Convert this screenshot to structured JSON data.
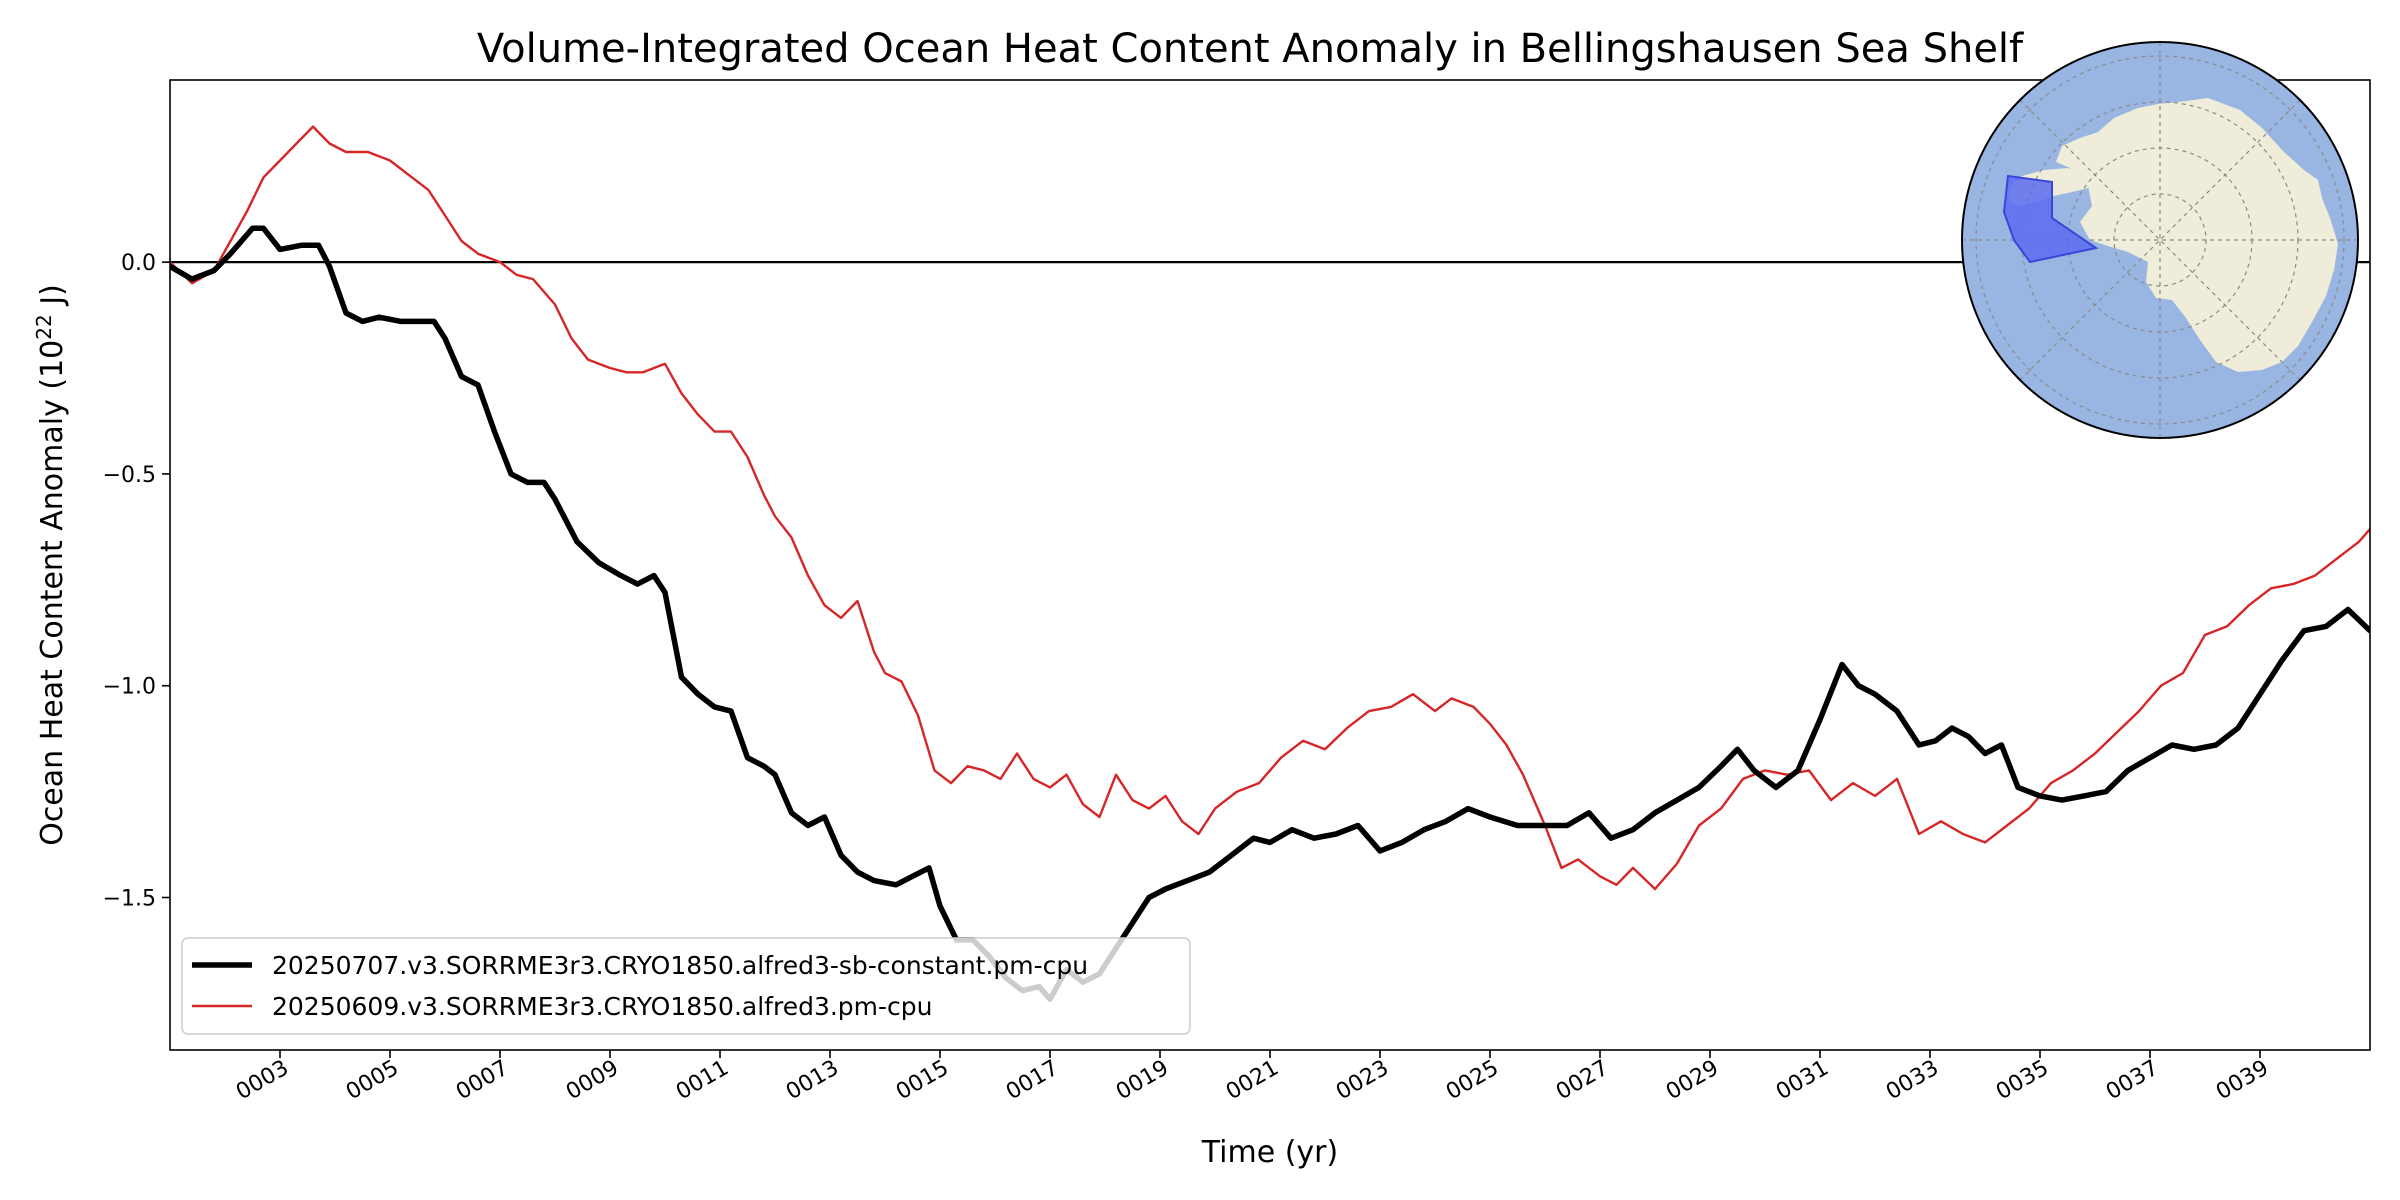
{
  "chart_data": {
    "type": "line",
    "title": "Volume-Integrated Ocean Heat Content Anomaly in Bellingshausen Sea Shelf",
    "xlabel": "Time (yr)",
    "ylabel": "Ocean Heat Content Anomaly (10²² J)",
    "ylabel_parts": {
      "pre": "Ocean Heat Content Anomaly (10",
      "sup": "22",
      "post": " J)"
    },
    "xlim": [
      1.0,
      41.0
    ],
    "ylim": [
      -1.86,
      0.43
    ],
    "x_ticks": [
      {
        "value": 3,
        "label": "0003"
      },
      {
        "value": 5,
        "label": "0005"
      },
      {
        "value": 7,
        "label": "0007"
      },
      {
        "value": 9,
        "label": "0009"
      },
      {
        "value": 11,
        "label": "0011"
      },
      {
        "value": 13,
        "label": "0013"
      },
      {
        "value": 15,
        "label": "0015"
      },
      {
        "value": 17,
        "label": "0017"
      },
      {
        "value": 19,
        "label": "0019"
      },
      {
        "value": 21,
        "label": "0021"
      },
      {
        "value": 23,
        "label": "0023"
      },
      {
        "value": 25,
        "label": "0025"
      },
      {
        "value": 27,
        "label": "0027"
      },
      {
        "value": 29,
        "label": "0029"
      },
      {
        "value": 31,
        "label": "0031"
      },
      {
        "value": 33,
        "label": "0033"
      },
      {
        "value": 35,
        "label": "0035"
      },
      {
        "value": 37,
        "label": "0037"
      },
      {
        "value": 39,
        "label": "0039"
      }
    ],
    "y_ticks": [
      {
        "value": 0.0,
        "label": "0.0"
      },
      {
        "value": -0.5,
        "label": "−0.5"
      },
      {
        "value": -1.0,
        "label": "−1.0"
      },
      {
        "value": -1.5,
        "label": "−1.5"
      }
    ],
    "zero_line": 0.0,
    "grid": false,
    "legend_position": "lower-left",
    "inset": "polar map of Antarctica with the Bellingshausen Sea shelf region highlighted",
    "colors": {
      "ocean": "#99b6e3",
      "land": "#efecd9",
      "region": "#5b6cf0",
      "series_black": "#000000",
      "series_red": "#d62728",
      "zero_line": "#000000"
    },
    "series": [
      {
        "name": "20250707.v3.SORRME3r3.CRYO1850.alfred3-sb-constant.pm-cpu",
        "color": "#000000",
        "x": [
          1.0,
          1.4,
          1.8,
          2.1,
          2.5,
          2.7,
          3.0,
          3.4,
          3.7,
          3.9,
          4.2,
          4.5,
          4.8,
          5.2,
          5.5,
          5.8,
          6.0,
          6.3,
          6.6,
          6.9,
          7.2,
          7.5,
          7.8,
          8.0,
          8.4,
          8.8,
          9.2,
          9.5,
          9.8,
          10.0,
          10.3,
          10.6,
          10.9,
          11.2,
          11.5,
          11.8,
          12.0,
          12.3,
          12.6,
          12.9,
          13.2,
          13.5,
          13.8,
          14.2,
          14.5,
          14.8,
          15.0,
          15.3,
          15.6,
          15.9,
          16.2,
          16.5,
          16.8,
          17.0,
          17.3,
          17.6,
          17.9,
          18.2,
          18.5,
          18.8,
          19.1,
          19.5,
          19.9,
          20.3,
          20.7,
          21.0,
          21.4,
          21.8,
          22.2,
          22.6,
          23.0,
          23.4,
          23.8,
          24.2,
          24.6,
          25.0,
          25.5,
          26.0,
          26.4,
          26.8,
          27.2,
          27.6,
          28.0,
          28.4,
          28.8,
          29.2,
          29.5,
          29.8,
          30.2,
          30.6,
          31.0,
          31.4,
          31.7,
          32.0,
          32.4,
          32.8,
          33.1,
          33.4,
          33.7,
          34.0,
          34.3,
          34.6,
          35.0,
          35.4,
          35.8,
          36.2,
          36.6,
          37.0,
          37.4,
          37.8,
          38.2,
          38.6,
          39.0,
          39.4,
          39.8,
          40.2,
          40.6,
          41.0
        ],
        "y": [
          -0.01,
          -0.04,
          -0.02,
          0.02,
          0.08,
          0.08,
          0.03,
          0.04,
          0.04,
          -0.01,
          -0.12,
          -0.14,
          -0.13,
          -0.14,
          -0.14,
          -0.14,
          -0.18,
          -0.27,
          -0.29,
          -0.4,
          -0.5,
          -0.52,
          -0.52,
          -0.56,
          -0.66,
          -0.71,
          -0.74,
          -0.76,
          -0.74,
          -0.78,
          -0.98,
          -1.02,
          -1.05,
          -1.06,
          -1.17,
          -1.19,
          -1.21,
          -1.3,
          -1.33,
          -1.31,
          -1.4,
          -1.44,
          -1.46,
          -1.47,
          -1.45,
          -1.43,
          -1.52,
          -1.6,
          -1.6,
          -1.64,
          -1.69,
          -1.72,
          -1.71,
          -1.74,
          -1.67,
          -1.7,
          -1.68,
          -1.62,
          -1.56,
          -1.5,
          -1.48,
          -1.46,
          -1.44,
          -1.4,
          -1.36,
          -1.37,
          -1.34,
          -1.36,
          -1.35,
          -1.33,
          -1.39,
          -1.37,
          -1.34,
          -1.32,
          -1.29,
          -1.31,
          -1.33,
          -1.33,
          -1.33,
          -1.3,
          -1.36,
          -1.34,
          -1.3,
          -1.27,
          -1.24,
          -1.19,
          -1.15,
          -1.2,
          -1.24,
          -1.2,
          -1.08,
          -0.95,
          -1.0,
          -1.02,
          -1.06,
          -1.14,
          -1.13,
          -1.1,
          -1.12,
          -1.16,
          -1.14,
          -1.24,
          -1.26,
          -1.27,
          -1.26,
          -1.25,
          -1.2,
          -1.17,
          -1.14,
          -1.15,
          -1.14,
          -1.1,
          -1.02,
          -0.94,
          -0.87,
          -0.86,
          -0.82,
          -0.87
        ]
      },
      {
        "name": "20250609.v3.SORRME3r3.CRYO1850.alfred3.pm-cpu",
        "color": "#d62728",
        "x": [
          1.0,
          1.4,
          1.8,
          2.1,
          2.4,
          2.7,
          3.0,
          3.3,
          3.6,
          3.9,
          4.2,
          4.6,
          5.0,
          5.4,
          5.7,
          6.0,
          6.3,
          6.6,
          7.0,
          7.3,
          7.6,
          8.0,
          8.3,
          8.6,
          9.0,
          9.3,
          9.6,
          10.0,
          10.3,
          10.6,
          10.9,
          11.2,
          11.5,
          11.8,
          12.0,
          12.3,
          12.6,
          12.9,
          13.2,
          13.5,
          13.8,
          14.0,
          14.3,
          14.6,
          14.9,
          15.2,
          15.5,
          15.8,
          16.1,
          16.4,
          16.7,
          17.0,
          17.3,
          17.6,
          17.9,
          18.2,
          18.5,
          18.8,
          19.1,
          19.4,
          19.7,
          20.0,
          20.4,
          20.8,
          21.2,
          21.6,
          22.0,
          22.4,
          22.8,
          23.2,
          23.6,
          24.0,
          24.3,
          24.7,
          25.0,
          25.3,
          25.6,
          26.0,
          26.3,
          26.6,
          27.0,
          27.3,
          27.6,
          28.0,
          28.4,
          28.8,
          29.2,
          29.6,
          30.0,
          30.4,
          30.8,
          31.2,
          31.6,
          32.0,
          32.4,
          32.8,
          33.2,
          33.6,
          34.0,
          34.4,
          34.8,
          35.2,
          35.6,
          36.0,
          36.4,
          36.8,
          37.2,
          37.6,
          38.0,
          38.4,
          38.8,
          39.2,
          39.6,
          40.0,
          40.4,
          40.8,
          41.0
        ],
        "y": [
          0.0,
          -0.05,
          -0.02,
          0.05,
          0.12,
          0.2,
          0.24,
          0.28,
          0.32,
          0.28,
          0.26,
          0.26,
          0.24,
          0.2,
          0.17,
          0.11,
          0.05,
          0.02,
          0.0,
          -0.03,
          -0.04,
          -0.1,
          -0.18,
          -0.23,
          -0.25,
          -0.26,
          -0.26,
          -0.24,
          -0.31,
          -0.36,
          -0.4,
          -0.4,
          -0.46,
          -0.55,
          -0.6,
          -0.65,
          -0.74,
          -0.81,
          -0.84,
          -0.8,
          -0.92,
          -0.97,
          -0.99,
          -1.07,
          -1.2,
          -1.23,
          -1.19,
          -1.2,
          -1.22,
          -1.16,
          -1.22,
          -1.24,
          -1.21,
          -1.28,
          -1.31,
          -1.21,
          -1.27,
          -1.29,
          -1.26,
          -1.32,
          -1.35,
          -1.29,
          -1.25,
          -1.23,
          -1.17,
          -1.13,
          -1.15,
          -1.1,
          -1.06,
          -1.05,
          -1.02,
          -1.06,
          -1.03,
          -1.05,
          -1.09,
          -1.14,
          -1.21,
          -1.33,
          -1.43,
          -1.41,
          -1.45,
          -1.47,
          -1.43,
          -1.48,
          -1.42,
          -1.33,
          -1.29,
          -1.22,
          -1.2,
          -1.21,
          -1.2,
          -1.27,
          -1.23,
          -1.26,
          -1.22,
          -1.35,
          -1.32,
          -1.35,
          -1.37,
          -1.33,
          -1.29,
          -1.23,
          -1.2,
          -1.16,
          -1.11,
          -1.06,
          -1.0,
          -0.97,
          -0.88,
          -0.86,
          -0.81,
          -0.77,
          -0.76,
          -0.74,
          -0.7,
          -0.66,
          -0.63
        ]
      }
    ]
  }
}
